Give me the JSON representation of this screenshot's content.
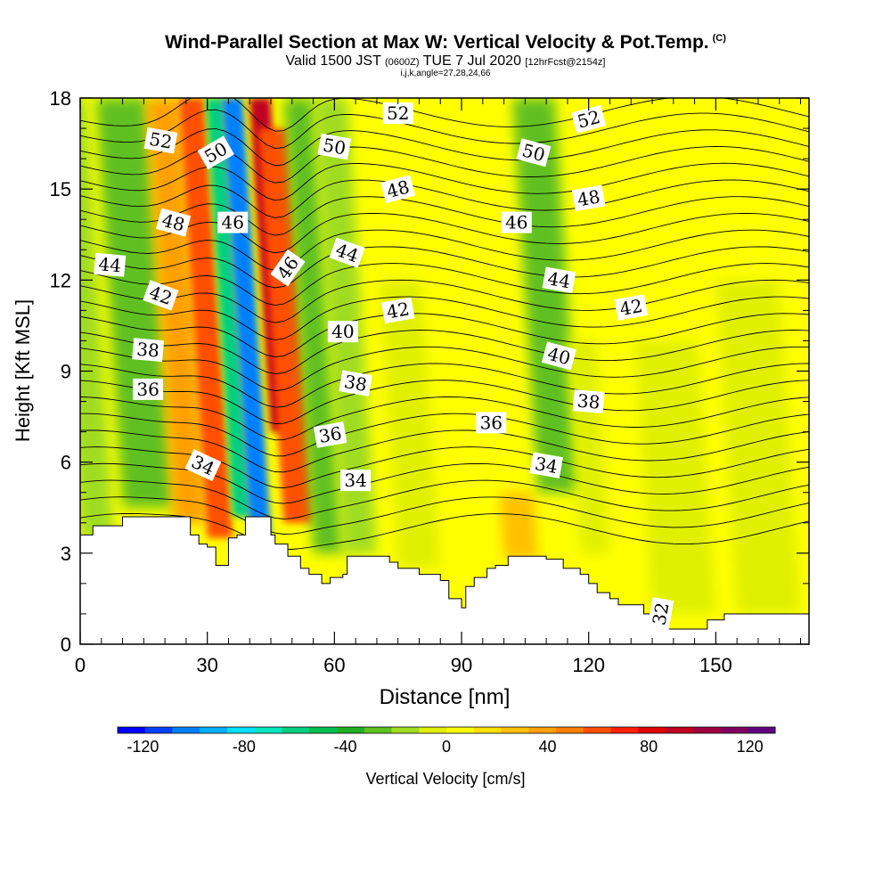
{
  "titles": {
    "main": "Wind-Parallel Section at Max W: Vertical Velocity & Pot.Temp.",
    "copyright": "(C)",
    "valid_prefix": "Valid 1500 JST",
    "utc": "(0600Z)",
    "valid_date": "TUE 7 Jul 2020",
    "forecast": "[12hrFcst@2154z]",
    "indices": "i,j,k,angle=27,28,24,66"
  },
  "chart_data": {
    "type": "heatmap",
    "xlabel": "Distance [nm]",
    "ylabel": "Height [Kft MSL]",
    "xlim": [
      0,
      172
    ],
    "ylim": [
      0,
      18
    ],
    "x_ticks": [
      0,
      30,
      60,
      90,
      120,
      150
    ],
    "y_ticks": [
      0,
      3,
      6,
      9,
      12,
      15,
      18
    ],
    "colorbar": {
      "label": "Vertical Velocity [cm/s]",
      "range": [
        -130,
        130
      ],
      "tick_labels": [
        -120,
        -80,
        -40,
        0,
        40,
        80,
        120
      ],
      "colors": [
        "#0000ff",
        "#0040ff",
        "#0080ff",
        "#00b0ff",
        "#00e0ff",
        "#00e8c0",
        "#00d080",
        "#00c050",
        "#20b020",
        "#60c020",
        "#a0dc20",
        "#e0f000",
        "#ffff00",
        "#ffe000",
        "#ffc000",
        "#ffa000",
        "#ff8000",
        "#ff5000",
        "#ff2000",
        "#e00000",
        "#c00020",
        "#a00040",
        "#800060",
        "#600080"
      ]
    },
    "updrafts": [
      {
        "x": 34,
        "z": 12,
        "w": 55
      },
      {
        "x": 48,
        "z": 14.5,
        "w": 100
      },
      {
        "x": 105,
        "z": 4,
        "w": 25
      }
    ],
    "downdrafts": [
      {
        "x": 43,
        "z": 10,
        "w": -110
      },
      {
        "x": 22,
        "z": 12,
        "w": -25
      },
      {
        "x": 62,
        "z": 14,
        "w": -25
      },
      {
        "x": 115,
        "z": 11,
        "w": -20
      }
    ],
    "terrain": [
      [
        0,
        3.6
      ],
      [
        3,
        3.9
      ],
      [
        10,
        4.2
      ],
      [
        26,
        3.6
      ],
      [
        28,
        3.3
      ],
      [
        30,
        3.2
      ],
      [
        32,
        2.6
      ],
      [
        35,
        3.5
      ],
      [
        37,
        3.6
      ],
      [
        39,
        4.2
      ],
      [
        45,
        3.6
      ],
      [
        46,
        3.3
      ],
      [
        49,
        2.9
      ],
      [
        52,
        2.5
      ],
      [
        54,
        2.3
      ],
      [
        57,
        2.0
      ],
      [
        59,
        2.2
      ],
      [
        62,
        2.3
      ],
      [
        63,
        2.9
      ],
      [
        70,
        2.9
      ],
      [
        73,
        2.7
      ],
      [
        75,
        2.5
      ],
      [
        80,
        2.3
      ],
      [
        85,
        2.1
      ],
      [
        87,
        1.5
      ],
      [
        90,
        1.2
      ],
      [
        91,
        1.9
      ],
      [
        93,
        2.2
      ],
      [
        96,
        2.5
      ],
      [
        98,
        2.6
      ],
      [
        101,
        2.9
      ],
      [
        110,
        2.8
      ],
      [
        114,
        2.5
      ],
      [
        118,
        2.3
      ],
      [
        120,
        2.0
      ],
      [
        122,
        1.7
      ],
      [
        125,
        1.5
      ],
      [
        127,
        1.3
      ],
      [
        133,
        1.0
      ],
      [
        138,
        0.5
      ],
      [
        145,
        0.5
      ],
      [
        148,
        0.8
      ],
      [
        152,
        1.0
      ],
      [
        155,
        1.0
      ],
      [
        172,
        1.0
      ]
    ],
    "isentropes_label": "Pot.Temp.",
    "contour_labels": [
      {
        "text": "52",
        "x": 19,
        "y": 16.6,
        "angle": 10
      },
      {
        "text": "50",
        "x": 32,
        "y": 16.2,
        "angle": -30
      },
      {
        "text": "48",
        "x": 22,
        "y": 13.9,
        "angle": 15
      },
      {
        "text": "46",
        "x": 36,
        "y": 13.9,
        "angle": 0
      },
      {
        "text": "44",
        "x": 7,
        "y": 12.5,
        "angle": 5
      },
      {
        "text": "42",
        "x": 19,
        "y": 11.5,
        "angle": 20
      },
      {
        "text": "38",
        "x": 16,
        "y": 9.7,
        "angle": 5
      },
      {
        "text": "36",
        "x": 16,
        "y": 8.4,
        "angle": 0
      },
      {
        "text": "34",
        "x": 29,
        "y": 5.9,
        "angle": 25
      },
      {
        "text": "46",
        "x": 49,
        "y": 12.4,
        "angle": -55
      },
      {
        "text": "50",
        "x": 60,
        "y": 16.4,
        "angle": 10
      },
      {
        "text": "44",
        "x": 63,
        "y": 12.9,
        "angle": 20
      },
      {
        "text": "40",
        "x": 62,
        "y": 10.3,
        "angle": 0
      },
      {
        "text": "38",
        "x": 65,
        "y": 8.6,
        "angle": 10
      },
      {
        "text": "36",
        "x": 59,
        "y": 6.9,
        "angle": -10
      },
      {
        "text": "34",
        "x": 65,
        "y": 5.4,
        "angle": 0
      },
      {
        "text": "52",
        "x": 75,
        "y": 17.5,
        "angle": 0
      },
      {
        "text": "48",
        "x": 75,
        "y": 15.0,
        "angle": -15
      },
      {
        "text": "42",
        "x": 75,
        "y": 11.0,
        "angle": -10
      },
      {
        "text": "36",
        "x": 97,
        "y": 7.3,
        "angle": 0
      },
      {
        "text": "46",
        "x": 103,
        "y": 13.9,
        "angle": 0
      },
      {
        "text": "50",
        "x": 107,
        "y": 16.2,
        "angle": 15
      },
      {
        "text": "52",
        "x": 120,
        "y": 17.3,
        "angle": -15
      },
      {
        "text": "48",
        "x": 120,
        "y": 14.7,
        "angle": -10
      },
      {
        "text": "44",
        "x": 113,
        "y": 12.0,
        "angle": 10
      },
      {
        "text": "40",
        "x": 113,
        "y": 9.5,
        "angle": 15
      },
      {
        "text": "34",
        "x": 110,
        "y": 5.9,
        "angle": 10
      },
      {
        "text": "38",
        "x": 120,
        "y": 8.0,
        "angle": 5
      },
      {
        "text": "42",
        "x": 130,
        "y": 11.1,
        "angle": -10
      },
      {
        "text": "32",
        "x": 137,
        "y": 1.0,
        "angle": -80
      }
    ]
  }
}
